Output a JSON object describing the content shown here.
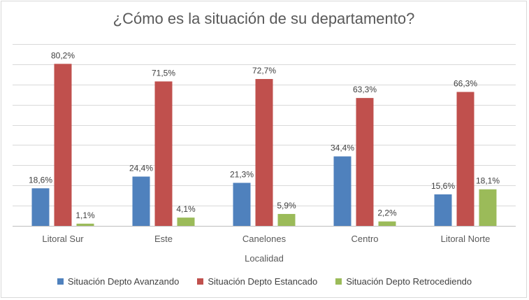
{
  "chart_data": {
    "type": "bar",
    "title": "¿Cómo es la situación de su departamento?",
    "xlabel": "Localidad",
    "ylabel": "",
    "categories": [
      "Litoral Sur",
      "Este",
      "Canelones",
      "Centro",
      "Litoral Norte"
    ],
    "ylim": [
      0,
      90
    ],
    "grid": true,
    "legend_position": "bottom",
    "series": [
      {
        "name": "Situación Depto Avanzando",
        "color": "#4f81bd",
        "values": [
          18.6,
          24.4,
          21.3,
          34.4,
          15.6
        ],
        "labels": [
          "18,6%",
          "24,4%",
          "21,3%",
          "34,4%",
          "15,6%"
        ]
      },
      {
        "name": "Situación Depto Estancado",
        "color": "#c0504d",
        "values": [
          80.2,
          71.5,
          72.7,
          63.3,
          66.3
        ],
        "labels": [
          "80,2%",
          "71,5%",
          "72,7%",
          "63,3%",
          "66,3%"
        ]
      },
      {
        "name": "Situación Depto Retrocediendo",
        "color": "#9bbb59",
        "values": [
          1.1,
          4.1,
          5.9,
          2.2,
          18.1
        ],
        "labels": [
          "1,1%",
          "4,1%",
          "5,9%",
          "2,2%",
          "18,1%"
        ]
      }
    ]
  }
}
